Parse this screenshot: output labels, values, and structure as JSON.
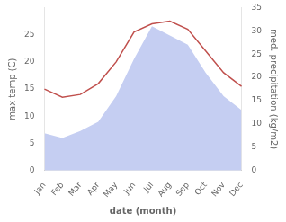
{
  "chart_data": {
    "type": "line",
    "categories": [
      "Jan",
      "Feb",
      "Mar",
      "Apr",
      "May",
      "Jun",
      "Jul",
      "Aug",
      "Sep",
      "Oct",
      "Nov",
      "Dec"
    ],
    "series": [
      {
        "type": "area",
        "color": "#c5cef2",
        "axis": "y2",
        "values": [
          8.0,
          7.0,
          8.5,
          10.5,
          16.0,
          24.0,
          31.0,
          29.0,
          27.0,
          21.0,
          16.0,
          13.0
        ]
      },
      {
        "type": "line",
        "color": "#c0504d",
        "values": [
          15.0,
          13.5,
          14.0,
          16.0,
          20.0,
          25.5,
          27.0,
          27.5,
          26.0,
          22.0,
          18.0,
          15.5
        ]
      }
    ],
    "xlabel": "date (month)",
    "ylabel": "max temp (C)",
    "y2label": "med. precipitation (kg/m2)",
    "ylim": [
      0,
      30
    ],
    "yticks": [
      0,
      5,
      10,
      15,
      20,
      25
    ],
    "y2lim": [
      0,
      35
    ],
    "y2ticks": [
      0,
      5,
      10,
      15,
      20,
      25,
      30,
      35
    ],
    "grid": false
  }
}
